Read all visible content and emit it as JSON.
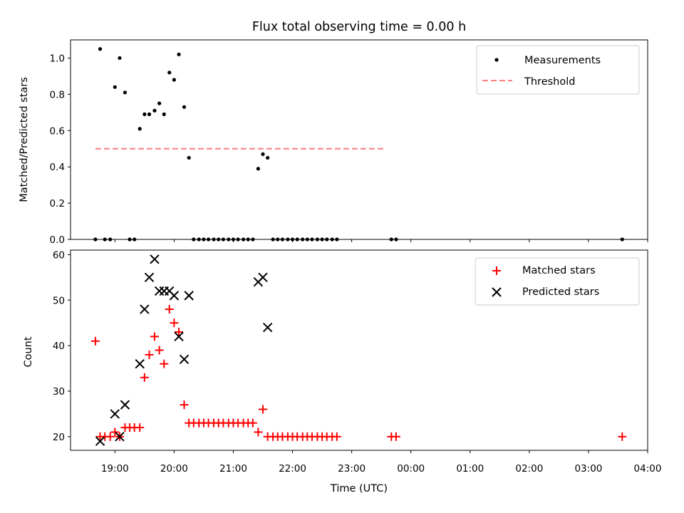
{
  "title": "Flux total observing time = 0.00 h",
  "colors": {
    "measurement": "#000000",
    "threshold": "#ff7f7f",
    "matched": "#ff0000",
    "predicted": "#000000"
  },
  "chart_data": [
    {
      "type": "scatter",
      "name": "top",
      "ylabel": "Matched/Predicted stars",
      "xlabel": "",
      "xlim": [
        18.25,
        28.0
      ],
      "ylim": [
        0.0,
        1.1
      ],
      "yticks": [
        0.0,
        0.2,
        0.4,
        0.6,
        0.8,
        1.0
      ],
      "ytick_labels": [
        "0.0",
        "0.2",
        "0.4",
        "0.6",
        "0.8",
        "1.0"
      ],
      "legend": {
        "position": "top-right",
        "entries": [
          "Measurements",
          "Threshold"
        ]
      },
      "threshold": {
        "name": "Threshold",
        "value": 0.5,
        "x_range": [
          18.67,
          23.57
        ]
      },
      "series": [
        {
          "name": "Measurements",
          "marker": "dot",
          "points": [
            [
              18.67,
              0.0
            ],
            [
              18.75,
              1.05
            ],
            [
              18.83,
              0.0
            ],
            [
              18.92,
              0.0
            ],
            [
              19.0,
              0.84
            ],
            [
              19.08,
              1.0
            ],
            [
              19.17,
              0.81
            ],
            [
              19.25,
              0.0
            ],
            [
              19.33,
              0.0
            ],
            [
              19.42,
              0.61
            ],
            [
              19.5,
              0.69
            ],
            [
              19.58,
              0.69
            ],
            [
              19.67,
              0.71
            ],
            [
              19.75,
              0.75
            ],
            [
              19.83,
              0.69
            ],
            [
              19.92,
              0.92
            ],
            [
              20.0,
              0.88
            ],
            [
              20.08,
              1.02
            ],
            [
              20.17,
              0.73
            ],
            [
              20.25,
              0.45
            ],
            [
              20.33,
              0.0
            ],
            [
              20.42,
              0.0
            ],
            [
              20.5,
              0.0
            ],
            [
              20.58,
              0.0
            ],
            [
              20.67,
              0.0
            ],
            [
              20.75,
              0.0
            ],
            [
              20.83,
              0.0
            ],
            [
              20.92,
              0.0
            ],
            [
              21.0,
              0.0
            ],
            [
              21.08,
              0.0
            ],
            [
              21.17,
              0.0
            ],
            [
              21.25,
              0.0
            ],
            [
              21.33,
              0.0
            ],
            [
              21.42,
              0.39
            ],
            [
              21.5,
              0.47
            ],
            [
              21.58,
              0.45
            ],
            [
              21.67,
              0.0
            ],
            [
              21.75,
              0.0
            ],
            [
              21.83,
              0.0
            ],
            [
              21.92,
              0.0
            ],
            [
              22.0,
              0.0
            ],
            [
              22.08,
              0.0
            ],
            [
              22.17,
              0.0
            ],
            [
              22.25,
              0.0
            ],
            [
              22.33,
              0.0
            ],
            [
              22.42,
              0.0
            ],
            [
              22.5,
              0.0
            ],
            [
              22.58,
              0.0
            ],
            [
              22.67,
              0.0
            ],
            [
              22.75,
              0.0
            ],
            [
              23.67,
              0.0
            ],
            [
              23.75,
              0.0
            ],
            [
              27.57,
              0.0
            ]
          ]
        }
      ]
    },
    {
      "type": "scatter",
      "name": "bottom",
      "ylabel": "Count",
      "xlabel": "Time (UTC)",
      "xlim": [
        18.25,
        28.0
      ],
      "ylim": [
        17,
        61
      ],
      "yticks": [
        20,
        30,
        40,
        50,
        60
      ],
      "ytick_labels": [
        "20",
        "30",
        "40",
        "50",
        "60"
      ],
      "xticks": [
        19,
        20,
        21,
        22,
        23,
        24,
        25,
        26,
        27,
        28
      ],
      "xtick_labels": [
        "19:00",
        "20:00",
        "21:00",
        "22:00",
        "23:00",
        "00:00",
        "01:00",
        "02:00",
        "03:00",
        "04:00"
      ],
      "legend": {
        "position": "top-right",
        "entries": [
          "Matched stars",
          "Predicted stars"
        ]
      },
      "series": [
        {
          "name": "Matched stars",
          "marker": "plus",
          "points": [
            [
              18.67,
              41
            ],
            [
              18.75,
              20
            ],
            [
              18.83,
              20
            ],
            [
              18.92,
              20
            ],
            [
              19.0,
              21
            ],
            [
              19.08,
              20
            ],
            [
              19.17,
              22
            ],
            [
              19.25,
              22
            ],
            [
              19.33,
              22
            ],
            [
              19.42,
              22
            ],
            [
              19.5,
              33
            ],
            [
              19.58,
              38
            ],
            [
              19.67,
              42
            ],
            [
              19.75,
              39
            ],
            [
              19.83,
              36
            ],
            [
              19.92,
              48
            ],
            [
              20.0,
              45
            ],
            [
              20.08,
              43
            ],
            [
              20.17,
              27
            ],
            [
              20.25,
              23
            ],
            [
              20.33,
              23
            ],
            [
              20.42,
              23
            ],
            [
              20.5,
              23
            ],
            [
              20.58,
              23
            ],
            [
              20.67,
              23
            ],
            [
              20.75,
              23
            ],
            [
              20.83,
              23
            ],
            [
              20.92,
              23
            ],
            [
              21.0,
              23
            ],
            [
              21.08,
              23
            ],
            [
              21.17,
              23
            ],
            [
              21.25,
              23
            ],
            [
              21.33,
              23
            ],
            [
              21.42,
              21
            ],
            [
              21.5,
              26
            ],
            [
              21.58,
              20
            ],
            [
              21.67,
              20
            ],
            [
              21.75,
              20
            ],
            [
              21.83,
              20
            ],
            [
              21.92,
              20
            ],
            [
              22.0,
              20
            ],
            [
              22.08,
              20
            ],
            [
              22.17,
              20
            ],
            [
              22.25,
              20
            ],
            [
              22.33,
              20
            ],
            [
              22.42,
              20
            ],
            [
              22.5,
              20
            ],
            [
              22.58,
              20
            ],
            [
              22.67,
              20
            ],
            [
              22.75,
              20
            ],
            [
              23.67,
              20
            ],
            [
              23.75,
              20
            ],
            [
              27.57,
              20
            ]
          ]
        },
        {
          "name": "Predicted stars",
          "marker": "x",
          "points": [
            [
              18.75,
              19
            ],
            [
              19.0,
              25
            ],
            [
              19.08,
              20
            ],
            [
              19.17,
              27
            ],
            [
              19.42,
              36
            ],
            [
              19.5,
              48
            ],
            [
              19.58,
              55
            ],
            [
              19.67,
              59
            ],
            [
              19.75,
              52
            ],
            [
              19.83,
              52
            ],
            [
              19.92,
              52
            ],
            [
              20.0,
              51
            ],
            [
              20.08,
              42
            ],
            [
              20.17,
              37
            ],
            [
              20.25,
              51
            ],
            [
              21.42,
              54
            ],
            [
              21.5,
              55
            ],
            [
              21.58,
              44
            ]
          ]
        }
      ]
    }
  ]
}
